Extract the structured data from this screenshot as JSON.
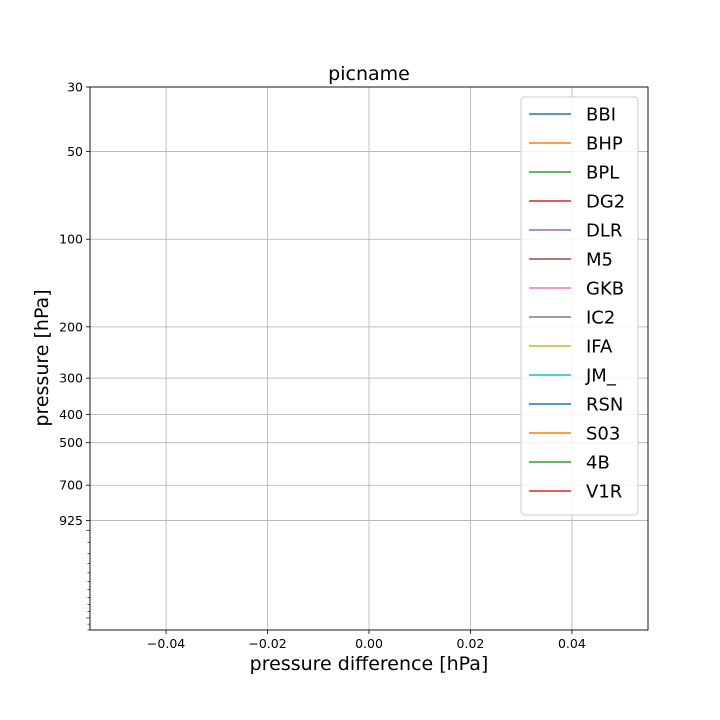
{
  "chart_data": {
    "type": "line",
    "title": "picname",
    "xlabel": "pressure difference [hPa]",
    "ylabel": "pressure [hPa]",
    "xlim": [
      -0.055,
      0.055
    ],
    "ylim": [
      2200,
      30
    ],
    "yscale": "log",
    "grid": true,
    "legend_position": "upper-right",
    "xticks": [
      -0.04,
      -0.02,
      0.0,
      0.02,
      0.04
    ],
    "xtick_labels": [
      "−0.04",
      "−0.02",
      "0.00",
      "0.02",
      "0.04"
    ],
    "yticks": [
      30,
      50,
      100,
      200,
      300,
      400,
      500,
      700,
      925
    ],
    "ytick_labels": [
      "30",
      "50",
      "100",
      "200",
      "300",
      "400",
      "500",
      "700",
      "925"
    ],
    "series": [
      {
        "name": "BBI",
        "color": "#1f77b4",
        "values": []
      },
      {
        "name": "BHP",
        "color": "#ff7f0e",
        "values": []
      },
      {
        "name": "BPL",
        "color": "#2ca02c",
        "values": []
      },
      {
        "name": "DG2",
        "color": "#d62728",
        "values": []
      },
      {
        "name": "DLR",
        "color": "#9467bd",
        "values": []
      },
      {
        "name": "M5",
        "color": "#8c564b",
        "values": []
      },
      {
        "name": "GKB",
        "color": "#e377c2",
        "values": []
      },
      {
        "name": "IC2",
        "color": "#7f7f7f",
        "values": []
      },
      {
        "name": "IFA",
        "color": "#bcbd22",
        "values": []
      },
      {
        "name": "JM_",
        "color": "#17becf",
        "values": []
      },
      {
        "name": "RSN",
        "color": "#1f77b4",
        "values": []
      },
      {
        "name": "S03",
        "color": "#ff7f0e",
        "values": []
      },
      {
        "name": "4B",
        "color": "#2ca02c",
        "values": []
      },
      {
        "name": "V1R",
        "color": "#d62728",
        "values": []
      }
    ]
  }
}
